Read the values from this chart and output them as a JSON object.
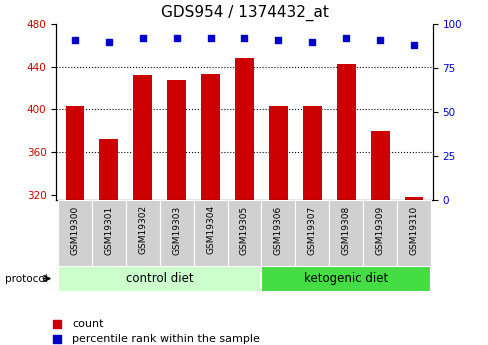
{
  "title": "GDS954 / 1374432_at",
  "samples": [
    "GSM19300",
    "GSM19301",
    "GSM19302",
    "GSM19303",
    "GSM19304",
    "GSM19305",
    "GSM19306",
    "GSM19307",
    "GSM19308",
    "GSM19309",
    "GSM19310"
  ],
  "counts": [
    403,
    372,
    432,
    428,
    433,
    448,
    403,
    403,
    443,
    380,
    318
  ],
  "percentile_ranks": [
    91,
    90,
    92,
    92,
    92,
    92,
    91,
    90,
    92,
    91,
    88
  ],
  "ylim_left": [
    315,
    480
  ],
  "ylim_right": [
    0,
    100
  ],
  "yticks_left": [
    320,
    360,
    400,
    440,
    480
  ],
  "yticks_right": [
    0,
    25,
    50,
    75,
    100
  ],
  "bar_color": "#cc0000",
  "square_color": "#0000cc",
  "bar_width": 0.55,
  "groups": [
    {
      "label": "control diet",
      "indices": [
        0,
        1,
        2,
        3,
        4,
        5
      ],
      "color": "#ccffcc"
    },
    {
      "label": "ketogenic diet",
      "indices": [
        6,
        7,
        8,
        9,
        10
      ],
      "color": "#44dd44"
    }
  ],
  "protocol_label": "protocol",
  "legend_count_label": "count",
  "legend_percentile_label": "percentile rank within the sample",
  "background_color": "#ffffff",
  "plot_bg_color": "#ffffff",
  "grid_color": "#000000",
  "tick_label_color_left": "#cc0000",
  "tick_label_color_right": "#0000cc",
  "title_fontsize": 11,
  "tick_fontsize": 7.5,
  "label_fontsize": 8,
  "group_label_fontsize": 8.5,
  "sample_fontsize": 6.5
}
